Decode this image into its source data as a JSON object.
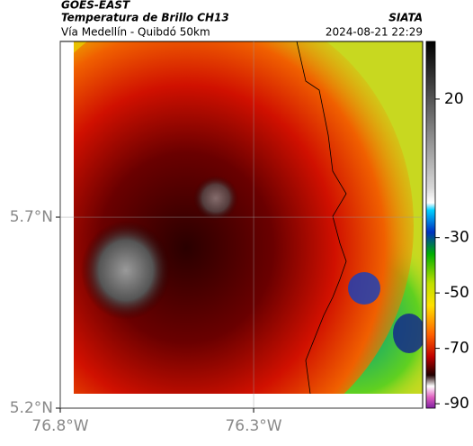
{
  "header": {
    "title": "GOES-EAST",
    "subtitle": "Temperatura de Brillo CH13",
    "route": "Vía Medellín - Quibdó 50km",
    "source": "SIATA",
    "datetime": "2024-08-21 22:29"
  },
  "map": {
    "latlim": [
      5.2,
      6.16
    ],
    "lonlim": [
      -76.8,
      -75.863
    ],
    "lat_ticks": [
      {
        "value": 5.7,
        "label": "5.7°N"
      },
      {
        "value": 5.2,
        "label": "5.2°N"
      }
    ],
    "lon_ticks": [
      {
        "value": -76.8,
        "label": "76.8°W"
      },
      {
        "value": -76.3,
        "label": "76.3°W"
      }
    ]
  },
  "colorbar": {
    "lim": [
      -91.6,
      40.8
    ],
    "ticks": [
      20,
      -30,
      -50,
      -70,
      -90
    ]
  }
}
